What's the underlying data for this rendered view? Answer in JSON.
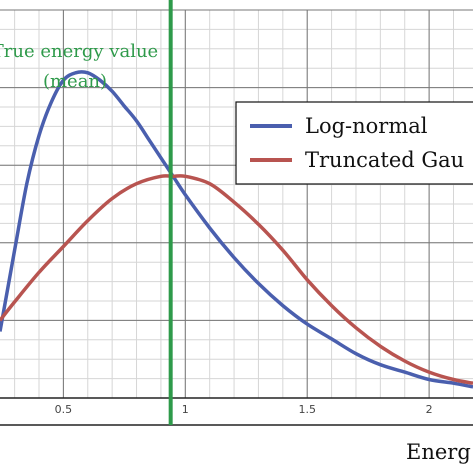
{
  "chart_data": {
    "type": "line",
    "title": "",
    "xlabel": "Energ",
    "ylabel": "",
    "xlim": [
      0.24,
      2.18
    ],
    "ylim": [
      0,
      1.05
    ],
    "x_ticks": [
      "0.5",
      "1",
      "1.5",
      "2"
    ],
    "grid": true,
    "legend_position": "top-right",
    "series": [
      {
        "name": "Log-normal",
        "color": "#4a5fae",
        "x": [
          0.24,
          0.3,
          0.35,
          0.4,
          0.45,
          0.5,
          0.55,
          0.6,
          0.65,
          0.7,
          0.75,
          0.8,
          0.85,
          0.9,
          0.95,
          1.0,
          1.1,
          1.2,
          1.3,
          1.4,
          1.5,
          1.6,
          1.7,
          1.8,
          1.9,
          2.0,
          2.1,
          2.18
        ],
        "y": [
          0.18,
          0.4,
          0.58,
          0.71,
          0.8,
          0.86,
          0.88,
          0.88,
          0.86,
          0.83,
          0.79,
          0.75,
          0.7,
          0.65,
          0.6,
          0.55,
          0.46,
          0.38,
          0.31,
          0.25,
          0.2,
          0.16,
          0.12,
          0.09,
          0.07,
          0.05,
          0.04,
          0.03
        ]
      },
      {
        "name": "Truncated Gau",
        "color": "#b85450",
        "x": [
          0.24,
          0.3,
          0.4,
          0.5,
          0.6,
          0.7,
          0.8,
          0.9,
          0.95,
          1.0,
          1.1,
          1.2,
          1.3,
          1.4,
          1.5,
          1.6,
          1.7,
          1.8,
          1.9,
          2.0,
          2.1,
          2.18
        ],
        "y": [
          0.21,
          0.26,
          0.34,
          0.41,
          0.48,
          0.54,
          0.58,
          0.6,
          0.6,
          0.6,
          0.58,
          0.53,
          0.47,
          0.4,
          0.32,
          0.25,
          0.19,
          0.14,
          0.1,
          0.07,
          0.05,
          0.04
        ]
      }
    ],
    "annotations": [
      {
        "text_line1": "True energy value",
        "text_line2": "(mean)",
        "x": 0.94,
        "color": "#2e9a4a"
      }
    ]
  }
}
